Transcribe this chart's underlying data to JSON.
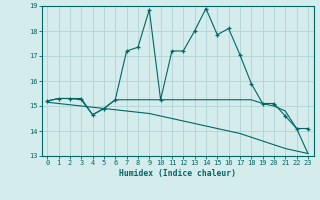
{
  "xlabel": "Humidex (Indice chaleur)",
  "xlim": [
    -0.5,
    23.5
  ],
  "ylim": [
    13,
    19
  ],
  "yticks": [
    13,
    14,
    15,
    16,
    17,
    18,
    19
  ],
  "xticks": [
    0,
    1,
    2,
    3,
    4,
    5,
    6,
    7,
    8,
    9,
    10,
    11,
    12,
    13,
    14,
    15,
    16,
    17,
    18,
    19,
    20,
    21,
    22,
    23
  ],
  "bg_color": "#d5ecec",
  "grid_color": "#b0d4d4",
  "line_color": "#006666",
  "line1_x": [
    0,
    1,
    2,
    3,
    4,
    5,
    6,
    7,
    8,
    9,
    10,
    11,
    12,
    13,
    14,
    15,
    16,
    17,
    18,
    19,
    20,
    21,
    22,
    23
  ],
  "line1_y": [
    15.2,
    15.3,
    15.3,
    15.3,
    14.65,
    14.9,
    15.25,
    17.2,
    17.35,
    18.85,
    15.25,
    17.2,
    17.2,
    18.0,
    18.9,
    17.85,
    18.1,
    17.05,
    15.9,
    15.1,
    15.1,
    14.6,
    14.1,
    14.1
  ],
  "line2_x": [
    0,
    1,
    2,
    3,
    4,
    5,
    6,
    7,
    8,
    9,
    10,
    11,
    12,
    13,
    14,
    15,
    16,
    17,
    18,
    19,
    20,
    21,
    22,
    23
  ],
  "line2_y": [
    15.2,
    15.3,
    15.3,
    15.25,
    14.65,
    14.9,
    15.25,
    15.25,
    15.25,
    15.25,
    15.25,
    15.25,
    15.25,
    15.25,
    15.25,
    15.25,
    15.25,
    15.25,
    15.25,
    15.1,
    15.0,
    14.8,
    14.1,
    13.1
  ],
  "line3_x": [
    0,
    1,
    2,
    3,
    4,
    5,
    6,
    7,
    8,
    9,
    10,
    11,
    12,
    13,
    14,
    15,
    16,
    17,
    18,
    19,
    20,
    21,
    22,
    23
  ],
  "line3_y": [
    15.15,
    15.1,
    15.05,
    15.0,
    14.95,
    14.9,
    14.85,
    14.8,
    14.75,
    14.7,
    14.6,
    14.5,
    14.4,
    14.3,
    14.2,
    14.1,
    14.0,
    13.9,
    13.75,
    13.6,
    13.45,
    13.3,
    13.2,
    13.1
  ]
}
